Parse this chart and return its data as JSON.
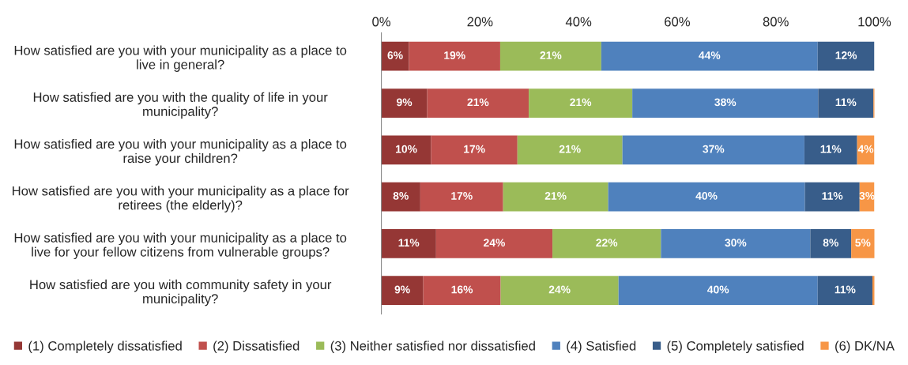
{
  "chart_data": {
    "type": "bar",
    "orientation": "horizontal",
    "stacked": true,
    "categories": [
      "How satisfied are you with your municipality as a place to\nlive in general?",
      "How satisfied are you with the quality of life in your\nmunicipality?",
      "How satisfied are you with your municipality as a place to\nraise your children?",
      "How satisfied are you with your municipality as a place for\nretirees (the elderly)?",
      "How satisfied are you with your municipality as a place to\nlive for your fellow citizens from vulnerable groups?",
      "How satisfied are you with community safety in your\nmunicipality?"
    ],
    "series": [
      {
        "name": "(1) Completely dissatisfied",
        "color": "#953735",
        "values": [
          5.6,
          9.3,
          10.1,
          7.9,
          11.1,
          8.5
        ],
        "value_labels": [
          "6%",
          "9%",
          "10%",
          "8%",
          "11%",
          "9%"
        ]
      },
      {
        "name": "(2) Dissatisfied",
        "color": "#c0504d",
        "values": [
          18.5,
          20.6,
          17.5,
          16.8,
          23.6,
          15.7
        ],
        "value_labels": [
          "19%",
          "21%",
          "17%",
          "17%",
          "24%",
          "16%"
        ]
      },
      {
        "name": "(3) Neither satisfied nor dissatisfied",
        "color": "#9bbb59",
        "values": [
          20.5,
          21.0,
          21.3,
          21.3,
          22.0,
          23.9
        ],
        "value_labels": [
          "21%",
          "21%",
          "21%",
          "21%",
          "22%",
          "24%"
        ]
      },
      {
        "name": "(4) Satisfied",
        "color": "#4f81bd",
        "values": [
          43.9,
          37.7,
          36.9,
          39.9,
          30.3,
          40.4
        ],
        "value_labels": [
          "44%",
          "38%",
          "37%",
          "40%",
          "30%",
          "40%"
        ]
      },
      {
        "name": "(5) Completely satisfied",
        "color": "#385d8a",
        "values": [
          11.5,
          11.2,
          10.7,
          11.1,
          8.3,
          11.1
        ],
        "value_labels": [
          "12%",
          "11%",
          "11%",
          "11%",
          "8%",
          "11%"
        ]
      },
      {
        "name": "(6) DK/NA",
        "color": "#f79646",
        "values": [
          0,
          0.3,
          3.5,
          3.0,
          4.8,
          0.5
        ],
        "value_labels": [
          null,
          null,
          "4%",
          "3%",
          "5%",
          null
        ]
      }
    ],
    "xlim": [
      0,
      100
    ],
    "xticks": [
      {
        "value": 0,
        "label": "0%"
      },
      {
        "value": 20,
        "label": "20%"
      },
      {
        "value": 40,
        "label": "40%"
      },
      {
        "value": 60,
        "label": "60%"
      },
      {
        "value": 80,
        "label": "80%"
      },
      {
        "value": 100,
        "label": "100%"
      }
    ],
    "grid": false,
    "legend": "bottom"
  }
}
